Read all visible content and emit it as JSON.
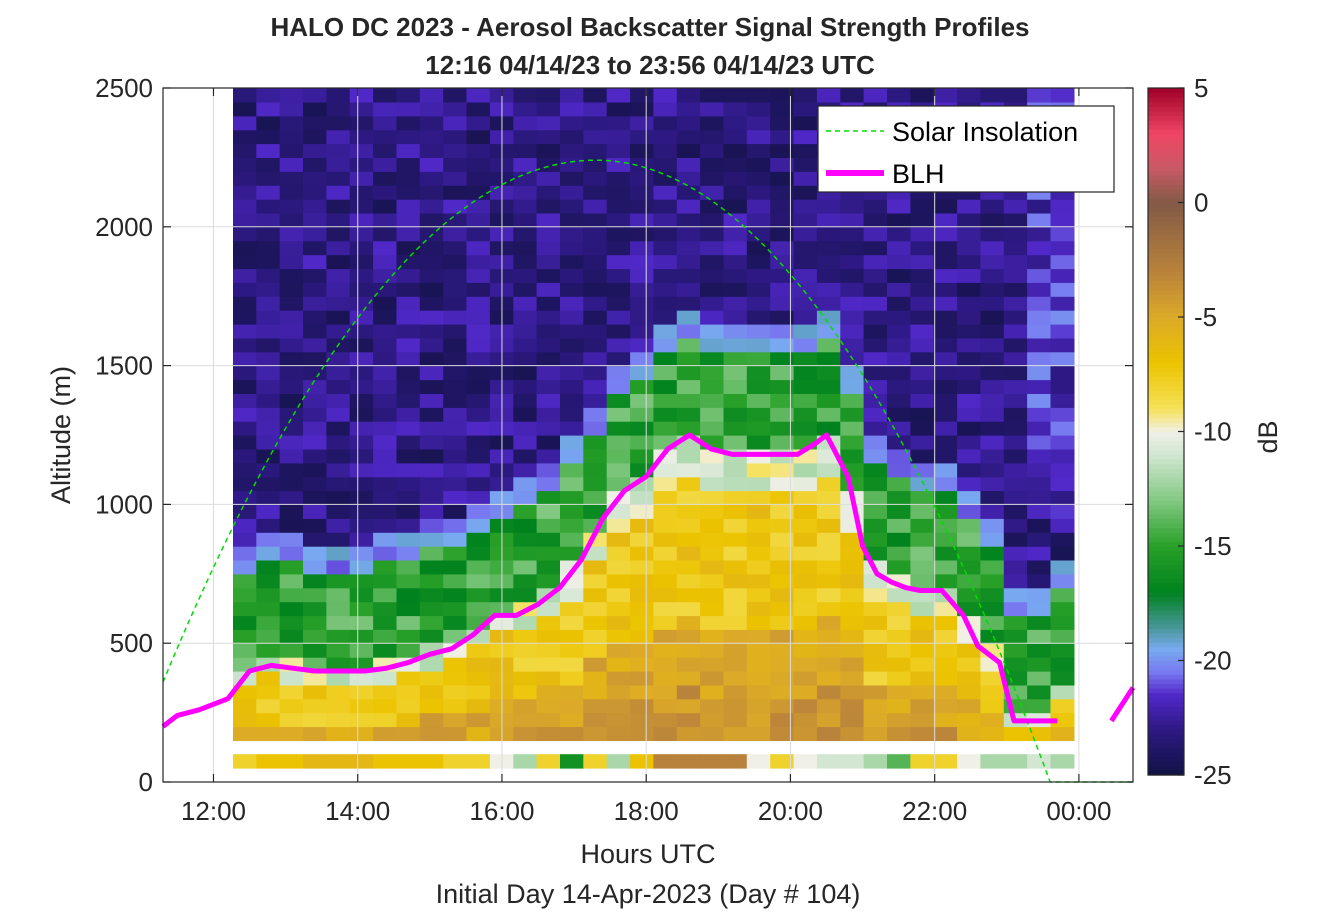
{
  "chart_data": {
    "type": "heatmap",
    "title": "HALO DC 2023 - Aerosol Backscatter Signal Strength Profiles",
    "subtitle": "12:16 04/14/23 to 23:56 04/14/23  UTC",
    "xlabel": "Hours UTC",
    "xlabel2": "Initial Day 14-Apr-2023 (Day # 104)",
    "ylabel": "Altitude (m)",
    "colorbar_label": "dB",
    "xlim": [
      11.3,
      24.75
    ],
    "ylim": [
      0,
      2500
    ],
    "clim": [
      -25,
      5
    ],
    "x_ticks": [
      12,
      14,
      16,
      18,
      20,
      22,
      24
    ],
    "x_tick_labels": [
      "12:00",
      "14:00",
      "16:00",
      "18:00",
      "20:00",
      "22:00",
      "00:00"
    ],
    "y_ticks": [
      0,
      500,
      1000,
      1500,
      2000,
      2500
    ],
    "y_tick_labels": [
      "0",
      "500",
      "1000",
      "1500",
      "2000",
      "2500"
    ],
    "c_ticks": [
      -25,
      -20,
      -15,
      -10,
      -5,
      0,
      5
    ],
    "c_tick_labels": [
      "-25",
      "-20",
      "-15",
      "-10",
      "-5",
      "0",
      "5"
    ],
    "grid": true,
    "legend_position": "top-right",
    "legend": [
      "Solar Insolation",
      "BLH"
    ],
    "colors": {
      "blh": "#ff00ff",
      "solar": "#00dd00"
    },
    "heatmap": {
      "x_start": 12.27,
      "x_end": 23.93,
      "bin_height_m": 100,
      "first_bin_m": 100,
      "top_bin_m": 2500,
      "surface_row_dB": [
        -8,
        -7,
        -7,
        -6,
        -6,
        -6,
        -7,
        -7,
        -7,
        -8,
        -8,
        -10,
        -12,
        -8,
        -16,
        -8,
        -12,
        -7,
        -3,
        -3,
        -3,
        -3,
        -10,
        -8,
        -10,
        -11,
        -11,
        -12,
        -14,
        -8,
        -8,
        -10,
        -12,
        -12,
        -11,
        -12
      ]
    },
    "series": [
      {
        "name": "BLH",
        "x": [
          11.3,
          11.5,
          11.8,
          12.2,
          12.5,
          12.8,
          13.1,
          13.4,
          13.8,
          14.1,
          14.4,
          14.7,
          15.0,
          15.3,
          15.6,
          15.9,
          16.2,
          16.5,
          16.8,
          17.1,
          17.4,
          17.7,
          18.0,
          18.3,
          18.6,
          18.9,
          19.2,
          19.5,
          19.8,
          20.1,
          20.35,
          20.5,
          20.6,
          20.8,
          21.0,
          21.2,
          21.4,
          21.6,
          21.8,
          22.1,
          22.4,
          22.6,
          22.9,
          23.1,
          23.4,
          23.7,
          23.9,
          24.0,
          24.1,
          24.3
        ],
        "y": [
          200,
          240,
          260,
          300,
          400,
          420,
          410,
          400,
          400,
          400,
          410,
          430,
          460,
          480,
          530,
          600,
          600,
          640,
          700,
          800,
          950,
          1050,
          1100,
          1200,
          1250,
          1200,
          1180,
          1180,
          1180,
          1180,
          1220,
          1250,
          1200,
          1100,
          850,
          750,
          720,
          700,
          690,
          690,
          600,
          490,
          430,
          220,
          220,
          220,
          null,
          null,
          null,
          null
        ]
      },
      {
        "name": "BLH (late segment)",
        "x": [
          24.45,
          24.75
        ],
        "y": [
          220,
          340
        ]
      },
      {
        "name": "Solar Insolation",
        "x": [
          11.3,
          17.3,
          23.6,
          24.75
        ],
        "y": [
          360,
          2240,
          0,
          0
        ]
      }
    ]
  }
}
